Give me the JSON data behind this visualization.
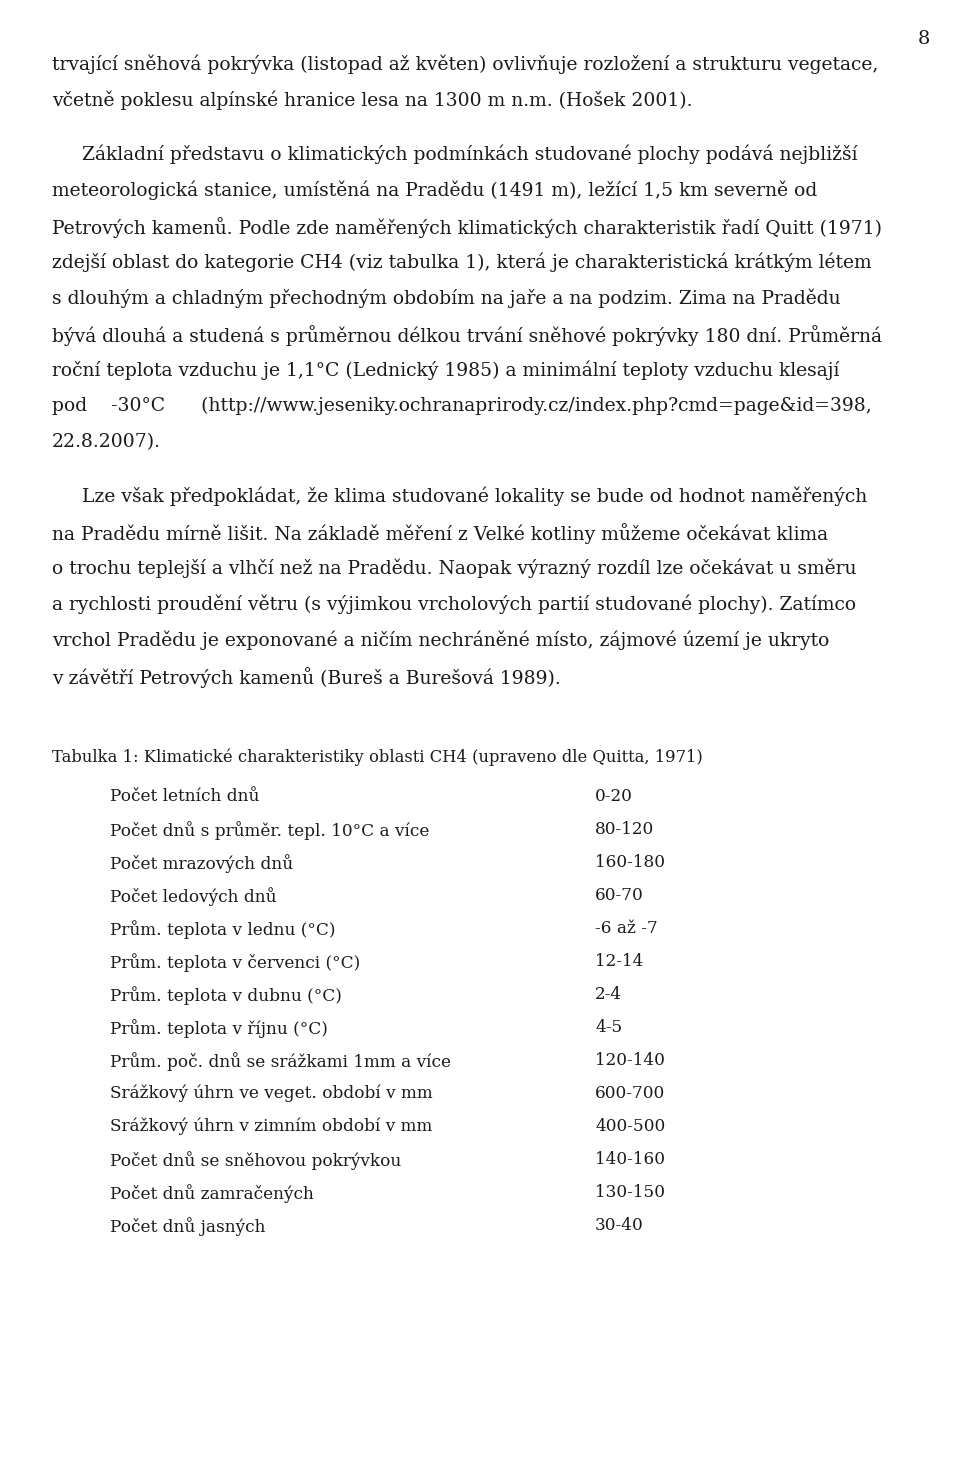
{
  "page_number": "8",
  "background_color": "#ffffff",
  "text_color": "#1a1a1a",
  "font_size_body": 13.5,
  "font_size_table_title": 11.8,
  "font_size_table": 12.2,
  "font_size_page_num": 14,
  "lines_top": [
    "trvající sněhová pokrývka (listopad až květen) ovlivňuje rozložení a strukturu vegetace,",
    "včetně poklesu alpínské hranice lesa na 1300 m n.m. (Hošek 2001)."
  ],
  "para2_lines": [
    "     Základní představu o klimatických podmínkách studované plochy podává nejbližší",
    "meteorologická stanice, umístěná na Pradědu (1491 m), ležící 1,5 km severně od",
    "Petrových kamenů. Podle zde naměřených klimatických charakteristik řadí Quitt (1971)",
    "zdejší oblast do kategorie CH4 (viz tabulka 1), která je charakteristická krátkým létem",
    "s dlouhým a chladným přechodným obdobím na jaře a na podzim. Zima na Pradědu",
    "bývá dlouhá a studená s průměrnou délkou trvání sněhové pokrývky 180 dní. Průměrná",
    "roční teplota vzduchu je 1,1°C (Lednický 1985) a minimální teploty vzduchu klesají",
    "pod    -30°C      (http://www.jeseniky.ochranaprirody.cz/index.php?cmd=page&id=398,",
    "22.8.2007)."
  ],
  "para3_lines": [
    "     Lze však předpokládat, že klima studované lokality se bude od hodnot naměřených",
    "na Pradědu mírně lišit. Na základě měření z Velké kotliny můžeme očekávat klima",
    "o trochu teplejší a vlhčí než na Pradědu. Naopak výrazný rozdíl lze očekávat u směru",
    "a rychlosti proudění větru (s výjimkou vrcholových partií studované plochy). Zatímco",
    "vrchol Pradědu je exponované a ničím nechráněné místo, zájmové území je ukryto",
    "v závětří Petrových kamenů (Bureš a Burešová 1989)."
  ],
  "table_title": "Tabulka 1: Klimatické charakteristiky oblasti CH4 (upraveno dle Quitta, 1971)",
  "table_rows": [
    [
      "Počet letních dnů",
      "0-20"
    ],
    [
      "Počet dnů s průměr. tepl. 10°C a více",
      "80-120"
    ],
    [
      "Počet mrazových dnů",
      "160-180"
    ],
    [
      "Počet ledových dnů",
      "60-70"
    ],
    [
      "Prům. teplota v lednu (°C)",
      "-6 až -7"
    ],
    [
      "Prům. teplota v červenci (°C)",
      "12-14"
    ],
    [
      "Prům. teplota v dubnu (°C)",
      "2-4"
    ],
    [
      "Prům. teplota v říjnu (°C)",
      "4-5"
    ],
    [
      "Prům. poč. dnů se srážkami 1mm a více",
      "120-140"
    ],
    [
      "Srážkový úhrn ve veget. období v mm",
      "600-700"
    ],
    [
      "Srážkový úhrn v zimním období v mm",
      "400-500"
    ],
    [
      "Počet dnů se sněhovou pokrývkou",
      "140-160"
    ],
    [
      "Počet dnů zamračených",
      "130-150"
    ],
    [
      "Počet dnů jasných",
      "30-40"
    ]
  ]
}
